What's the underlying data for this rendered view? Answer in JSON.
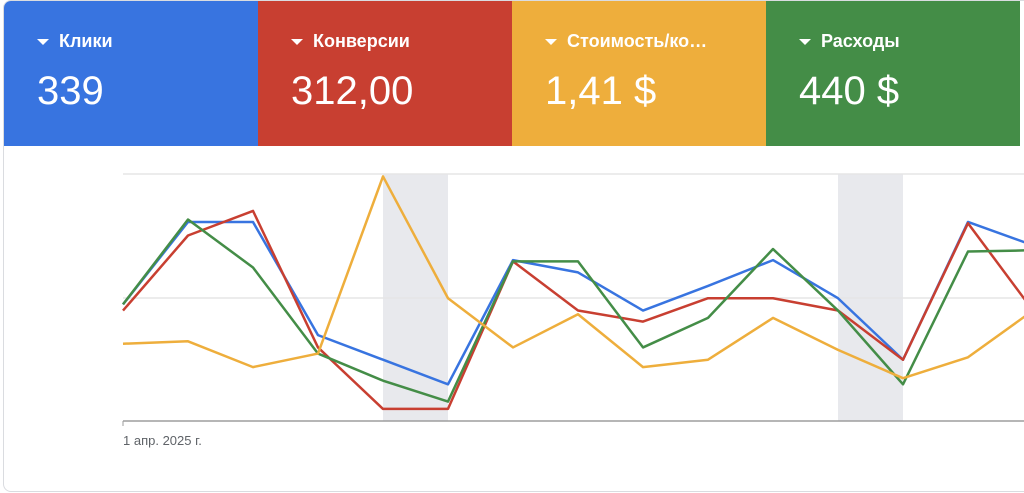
{
  "metrics": [
    {
      "label": "Клики",
      "value": "339",
      "color": "#3874e0"
    },
    {
      "label": "Конверсии",
      "value": "312,00",
      "color": "#c83f31"
    },
    {
      "label": "Стоимость/ко…",
      "value": "1,41 $",
      "color": "#eeae3c"
    },
    {
      "label": "Расходы",
      "value": "440 $",
      "color": "#448d47"
    }
  ],
  "chart_data": {
    "type": "line",
    "x_start_label": "1 апр. 2025 г.",
    "grid": true,
    "weekend_bands": [
      [
        4,
        5
      ],
      [
        11,
        12
      ]
    ],
    "band_color": "#e8e9ed",
    "series": [
      {
        "color": "#3874e0",
        "values": [
          0.94,
          1.61,
          1.61,
          0.69,
          0.49,
          0.29,
          1.3,
          1.2,
          0.89,
          1.09,
          1.3,
          0.99,
          0.49,
          1.61,
          1.42
        ]
      },
      {
        "color": "#c83f31",
        "values": [
          0.89,
          1.5,
          1.7,
          0.59,
          0.09,
          0.09,
          1.29,
          0.89,
          0.8,
          0.99,
          0.99,
          0.89,
          0.49,
          1.6,
          0.89
        ]
      },
      {
        "color": "#448d47",
        "values": [
          0.94,
          1.63,
          1.24,
          0.54,
          0.32,
          0.15,
          1.29,
          1.29,
          0.59,
          0.83,
          1.39,
          0.89,
          0.29,
          1.37,
          1.38
        ]
      },
      {
        "color": "#eeae3c",
        "values": [
          0.62,
          0.64,
          0.43,
          0.54,
          1.98,
          0.99,
          0.59,
          0.86,
          0.43,
          0.49,
          0.83,
          0.57,
          0.34,
          0.51,
          0.89
        ]
      }
    ]
  }
}
